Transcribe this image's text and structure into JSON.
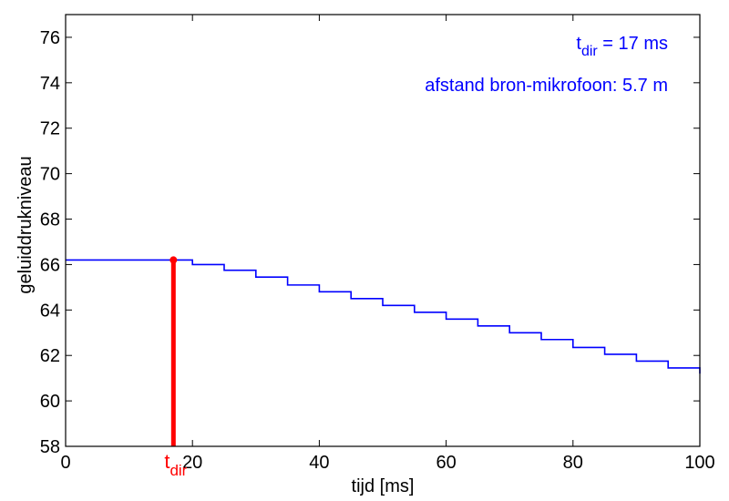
{
  "chart_data": {
    "type": "line",
    "xlabel": "tijd  [ms]",
    "ylabel": "geluiddrukniveau",
    "xlim": [
      0,
      100
    ],
    "ylim": [
      58,
      77
    ],
    "xticks": [
      0,
      20,
      40,
      60,
      80,
      100
    ],
    "yticks": [
      58,
      60,
      62,
      64,
      66,
      68,
      70,
      72,
      74,
      76
    ],
    "grid": false,
    "series": [
      {
        "color": "#0000ff",
        "step": true,
        "x": [
          0,
          17,
          20,
          25,
          30,
          35,
          40,
          45,
          50,
          55,
          60,
          65,
          70,
          75,
          80,
          85,
          90,
          95,
          100
        ],
        "y": [
          66.2,
          66.2,
          66.0,
          65.75,
          65.45,
          65.1,
          64.8,
          64.5,
          64.2,
          63.9,
          63.6,
          63.3,
          63.0,
          62.7,
          62.35,
          62.05,
          61.75,
          61.45,
          61.2
        ]
      }
    ],
    "marker": {
      "x": 17,
      "y": 66.2,
      "color": "#ff0000",
      "label_main": "t",
      "label_sub": "dir"
    },
    "annotations": {
      "line1_main": "t",
      "line1_sub": "dir",
      "line1_rest": " = 17 ms",
      "line2": "afstand bron-mikrofoon: 5.7 m",
      "color": "#0000ff"
    }
  }
}
